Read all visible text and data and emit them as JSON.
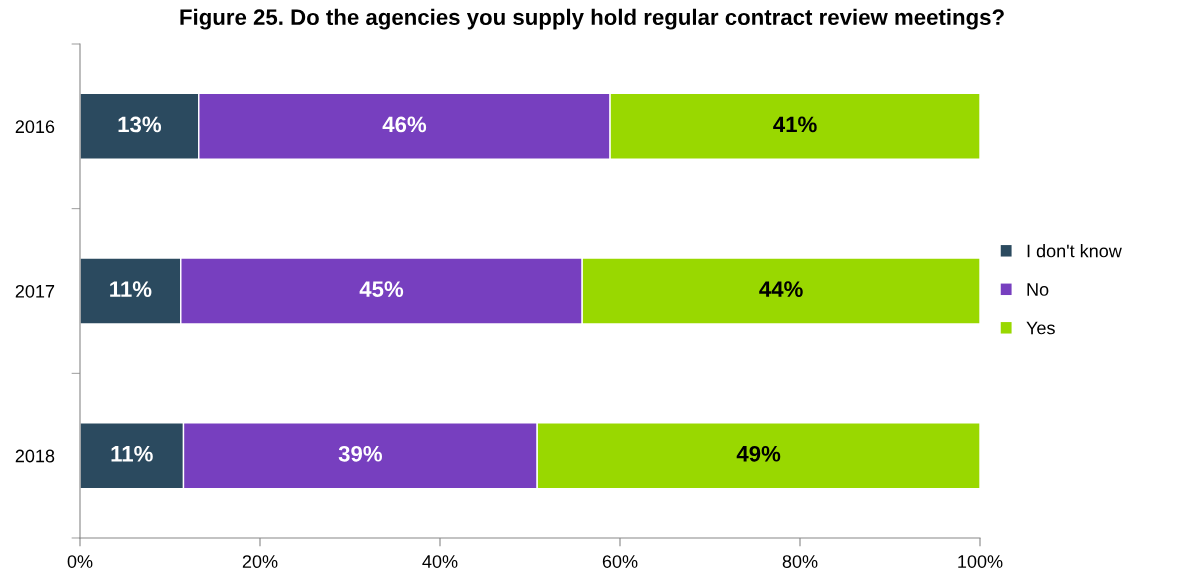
{
  "chart_data": {
    "type": "bar",
    "orientation": "horizontal",
    "stacked": true,
    "title": "Figure 25. Do the agencies you supply hold regular contract review meetings?",
    "categories": [
      "2016",
      "2017",
      "2018"
    ],
    "series": [
      {
        "name": "I don't know",
        "color": "#2b4a5f",
        "values": [
          13.2,
          11.2,
          11.5
        ],
        "value_labels": [
          "13%",
          "11%",
          "11%"
        ]
      },
      {
        "name": "No",
        "color": "#773fbf",
        "values": [
          45.7,
          44.6,
          39.3
        ],
        "value_labels": [
          "46%",
          "45%",
          "39%"
        ]
      },
      {
        "name": "Yes",
        "color": "#99d800",
        "values": [
          41.1,
          44.2,
          49.2
        ],
        "value_labels": [
          "41%",
          "44%",
          "49%"
        ]
      }
    ],
    "xlim": [
      0,
      100
    ],
    "xticks": [
      {
        "value": 0,
        "label": "0%"
      },
      {
        "value": 20,
        "label": "20%"
      },
      {
        "value": 40,
        "label": "40%"
      },
      {
        "value": 60,
        "label": "60%"
      },
      {
        "value": 80,
        "label": "80%"
      },
      {
        "value": 100,
        "label": "100%"
      }
    ],
    "legend": "right",
    "grid": false
  }
}
